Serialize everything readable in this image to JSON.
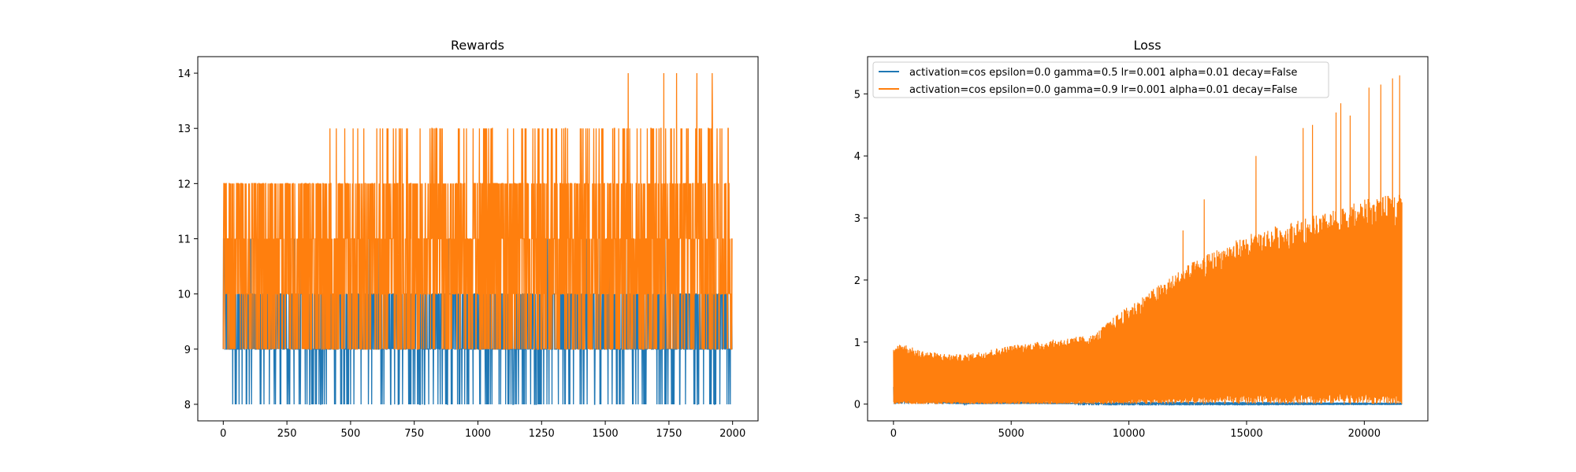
{
  "chart_data": [
    {
      "type": "line",
      "title": "Rewards",
      "xlabel": "",
      "ylabel": "",
      "xlim": [
        -100,
        2100
      ],
      "ylim": [
        7.7,
        14.3
      ],
      "xticks": [
        0,
        250,
        500,
        750,
        1000,
        1250,
        1500,
        1750,
        2000
      ],
      "yticks": [
        8,
        9,
        10,
        11,
        12,
        13,
        14
      ],
      "legend": null,
      "grid": false,
      "series": [
        {
          "color": "#1f77b4",
          "n_points": 2000,
          "description_values": {
            "min": 8,
            "max": 11,
            "typical": [
              9,
              10
            ]
          },
          "values_sample": [
            9,
            10,
            8,
            9,
            10,
            9,
            8,
            10,
            9,
            9,
            11,
            10,
            9,
            8,
            9,
            10,
            9,
            10,
            8,
            9
          ]
        },
        {
          "color": "#ff7f0e",
          "n_points": 2000,
          "description_values": {
            "min": 9,
            "max": 14,
            "typical": [
              10,
              11,
              12
            ]
          },
          "values_sample": [
            12,
            10,
            11,
            9,
            12,
            11,
            10,
            13,
            9,
            12,
            11,
            10,
            12,
            9,
            11,
            12,
            10,
            13,
            11,
            12
          ],
          "peaks": [
            {
              "x": 1590,
              "y": 14
            },
            {
              "x": 1730,
              "y": 14
            },
            {
              "x": 1780,
              "y": 14
            },
            {
              "x": 1860,
              "y": 14
            },
            {
              "x": 1920,
              "y": 14
            }
          ]
        }
      ]
    },
    {
      "type": "line",
      "title": "Loss",
      "xlabel": "",
      "ylabel": "",
      "xlim": [
        -1100,
        22700
      ],
      "ylim": [
        -0.27,
        5.6
      ],
      "xticks": [
        0,
        5000,
        10000,
        15000,
        20000
      ],
      "yticks": [
        0,
        1,
        2,
        3,
        4,
        5
      ],
      "legend": "top-left",
      "grid": false,
      "series": [
        {
          "name": "activation=cos epsilon=0.0 gamma=0.5 lr=0.001 alpha=0.01 decay=False",
          "color": "#1f77b4",
          "envelope": [
            [
              0,
              0.32
            ],
            [
              500,
              0.28
            ],
            [
              1000,
              0.25
            ],
            [
              1500,
              0.22
            ],
            [
              2000,
              0.15
            ],
            [
              2500,
              0.06
            ],
            [
              3000,
              0.02
            ],
            [
              5000,
              0.05
            ],
            [
              8000,
              0.02
            ],
            [
              21600,
              0.01
            ]
          ]
        },
        {
          "name": "activation=cos epsilon=0.0 gamma=0.9 lr=0.001 alpha=0.01 decay=False",
          "color": "#ff7f0e",
          "envelope": [
            [
              0,
              0.9
            ],
            [
              300,
              1.0
            ],
            [
              1000,
              0.88
            ],
            [
              2000,
              0.82
            ],
            [
              3000,
              0.8
            ],
            [
              5000,
              0.95
            ],
            [
              7000,
              1.05
            ],
            [
              8500,
              1.12
            ],
            [
              9500,
              1.45
            ],
            [
              11000,
              1.85
            ],
            [
              12500,
              2.25
            ],
            [
              14000,
              2.55
            ],
            [
              15500,
              2.8
            ],
            [
              17000,
              2.95
            ],
            [
              18500,
              3.1
            ],
            [
              20000,
              3.3
            ],
            [
              21600,
              3.4
            ]
          ],
          "spikes": [
            {
              "x": 12300,
              "y": 2.8
            },
            {
              "x": 13200,
              "y": 3.3
            },
            {
              "x": 15400,
              "y": 4.0
            },
            {
              "x": 17400,
              "y": 4.45
            },
            {
              "x": 17800,
              "y": 4.5
            },
            {
              "x": 18800,
              "y": 4.7
            },
            {
              "x": 19000,
              "y": 4.85
            },
            {
              "x": 19400,
              "y": 4.65
            },
            {
              "x": 20200,
              "y": 5.1
            },
            {
              "x": 20700,
              "y": 5.15
            },
            {
              "x": 21200,
              "y": 5.25
            },
            {
              "x": 21500,
              "y": 5.3
            }
          ]
        }
      ]
    }
  ]
}
